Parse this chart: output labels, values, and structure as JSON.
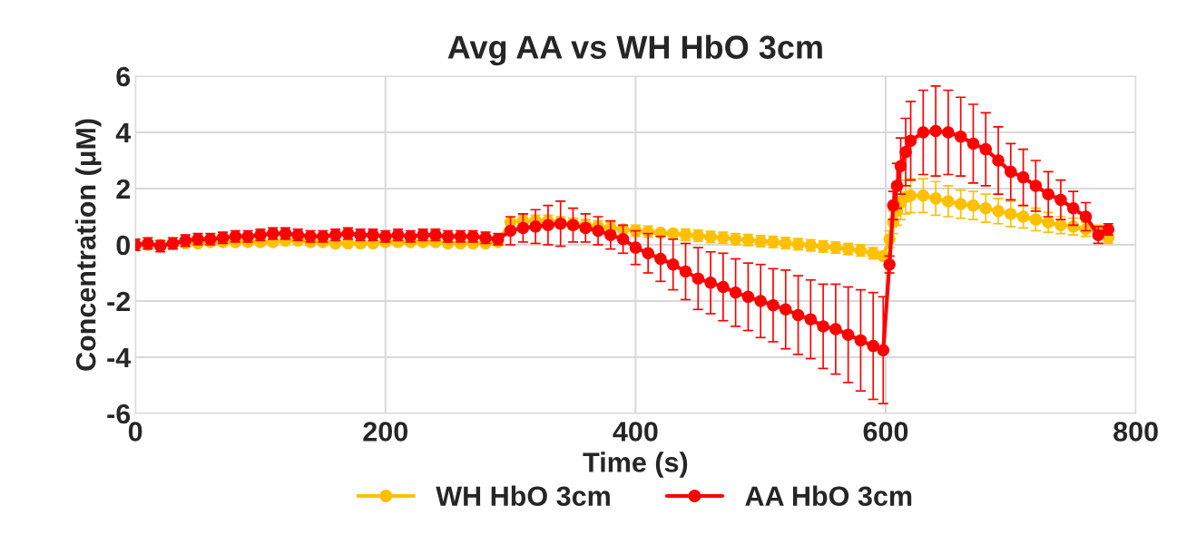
{
  "chart_data": {
    "type": "line",
    "title": "Avg AA vs WH HbO 3cm",
    "xlabel": "Time (s)",
    "ylabel": "Concentration (μM)",
    "x": [
      0,
      10,
      20,
      30,
      40,
      50,
      60,
      70,
      80,
      90,
      100,
      110,
      120,
      130,
      140,
      150,
      160,
      170,
      180,
      190,
      200,
      210,
      220,
      230,
      240,
      250,
      260,
      270,
      280,
      290,
      300,
      310,
      320,
      330,
      340,
      350,
      360,
      370,
      380,
      390,
      400,
      410,
      420,
      430,
      440,
      450,
      460,
      470,
      480,
      490,
      500,
      510,
      520,
      530,
      540,
      550,
      560,
      570,
      580,
      590,
      598,
      603,
      606,
      609,
      612,
      616,
      620,
      630,
      640,
      650,
      660,
      670,
      680,
      690,
      700,
      710,
      720,
      730,
      740,
      750,
      760,
      770,
      778
    ],
    "series": [
      {
        "name": "WH HbO 3cm",
        "color": "#ffc000",
        "values": [
          0,
          0,
          0,
          0.05,
          0.05,
          0.05,
          0.1,
          0.1,
          0.1,
          0.1,
          0.1,
          0.1,
          0.15,
          0.15,
          0.1,
          0.1,
          0.05,
          0.05,
          0.05,
          0.05,
          0.1,
          0.1,
          0.1,
          0.1,
          0.1,
          0.05,
          0.05,
          0.05,
          0.05,
          0.1,
          0.8,
          0.85,
          0.85,
          0.85,
          0.8,
          0.75,
          0.7,
          0.65,
          0.6,
          0.55,
          0.5,
          0.47,
          0.43,
          0.4,
          0.36,
          0.32,
          0.28,
          0.25,
          0.2,
          0.17,
          0.13,
          0.1,
          0.06,
          0.02,
          -0.02,
          -0.06,
          -0.1,
          -0.15,
          -0.2,
          -0.3,
          -0.4,
          0.2,
          0.8,
          1.2,
          1.5,
          1.7,
          1.75,
          1.75,
          1.65,
          1.55,
          1.45,
          1.4,
          1.3,
          1.2,
          1.1,
          1.0,
          0.9,
          0.8,
          0.7,
          0.65,
          0.55,
          0.5,
          0.25
        ],
        "errors": [
          null,
          null,
          null,
          null,
          null,
          null,
          null,
          null,
          null,
          null,
          null,
          null,
          null,
          null,
          null,
          null,
          null,
          null,
          null,
          null,
          null,
          null,
          null,
          null,
          null,
          null,
          null,
          null,
          null,
          null,
          null,
          0.2,
          0.2,
          0.2,
          0.2,
          0.2,
          0.2,
          0.2,
          0.2,
          null,
          0.2,
          0.2,
          null,
          null,
          0.2,
          0.2,
          0.2,
          0.2,
          0.2,
          0.2,
          0.2,
          0.2,
          0.2,
          0.2,
          0.2,
          0.2,
          0.2,
          0.2,
          0.2,
          0.2,
          null,
          0.3,
          0.4,
          0.5,
          0.6,
          0.6,
          0.6,
          0.6,
          0.6,
          0.55,
          0.5,
          0.5,
          0.5,
          0.45,
          0.45,
          0.4,
          0.4,
          0.35,
          0.3,
          0.3,
          0.25,
          0.2,
          0.2
        ]
      },
      {
        "name": "AA HbO 3cm",
        "color": "#ff0000",
        "values": [
          0.0,
          0.05,
          -0.05,
          0.05,
          0.15,
          0.2,
          0.2,
          0.25,
          0.3,
          0.3,
          0.35,
          0.4,
          0.4,
          0.35,
          0.3,
          0.3,
          0.35,
          0.4,
          0.35,
          0.35,
          0.3,
          0.35,
          0.3,
          0.35,
          0.35,
          0.3,
          0.3,
          0.3,
          0.25,
          0.2,
          0.5,
          0.6,
          0.65,
          0.7,
          0.75,
          0.7,
          0.6,
          0.5,
          0.35,
          0.2,
          -0.1,
          -0.3,
          -0.5,
          -0.7,
          -0.95,
          -1.2,
          -1.35,
          -1.5,
          -1.7,
          -1.85,
          -2.0,
          -2.15,
          -2.3,
          -2.5,
          -2.65,
          -2.9,
          -3.0,
          -3.2,
          -3.4,
          -3.6,
          -3.75,
          -0.7,
          1.4,
          2.1,
          2.8,
          3.3,
          3.7,
          4.0,
          4.05,
          4.0,
          3.85,
          3.6,
          3.4,
          3.0,
          2.6,
          2.4,
          2.1,
          1.8,
          1.6,
          1.3,
          1.0,
          0.35,
          0.55
        ],
        "errors": [
          0.2,
          0.2,
          0.2,
          0.2,
          0.2,
          0.2,
          0.2,
          0.2,
          0.2,
          0.2,
          0.2,
          0.2,
          0.2,
          0.2,
          0.2,
          0.2,
          0.2,
          0.2,
          0.2,
          0.2,
          0.2,
          0.2,
          0.2,
          0.2,
          0.2,
          0.2,
          0.2,
          0.2,
          0.2,
          0.2,
          0.5,
          0.5,
          0.6,
          0.7,
          0.8,
          0.6,
          0.5,
          0.5,
          0.5,
          0.5,
          0.6,
          0.7,
          0.8,
          0.9,
          1.0,
          1.1,
          1.1,
          1.2,
          1.2,
          1.2,
          1.3,
          1.3,
          1.4,
          1.4,
          1.4,
          1.5,
          1.6,
          1.7,
          1.8,
          1.9,
          1.9,
          0.3,
          0.5,
          0.8,
          1.0,
          1.2,
          1.4,
          1.5,
          1.6,
          1.5,
          1.4,
          1.4,
          1.3,
          1.2,
          1.0,
          1.0,
          0.9,
          0.8,
          0.7,
          0.6,
          0.5,
          0.3,
          0.2
        ]
      }
    ],
    "xlim": [
      0,
      800
    ],
    "xticks": [
      0,
      200,
      400,
      600,
      800
    ],
    "ylim": [
      -6,
      6
    ],
    "yticks": [
      -6,
      -4,
      -2,
      0,
      2,
      4,
      6
    ],
    "grid": true,
    "legend": "bottom",
    "marker": "circle",
    "line_style": "solid"
  }
}
